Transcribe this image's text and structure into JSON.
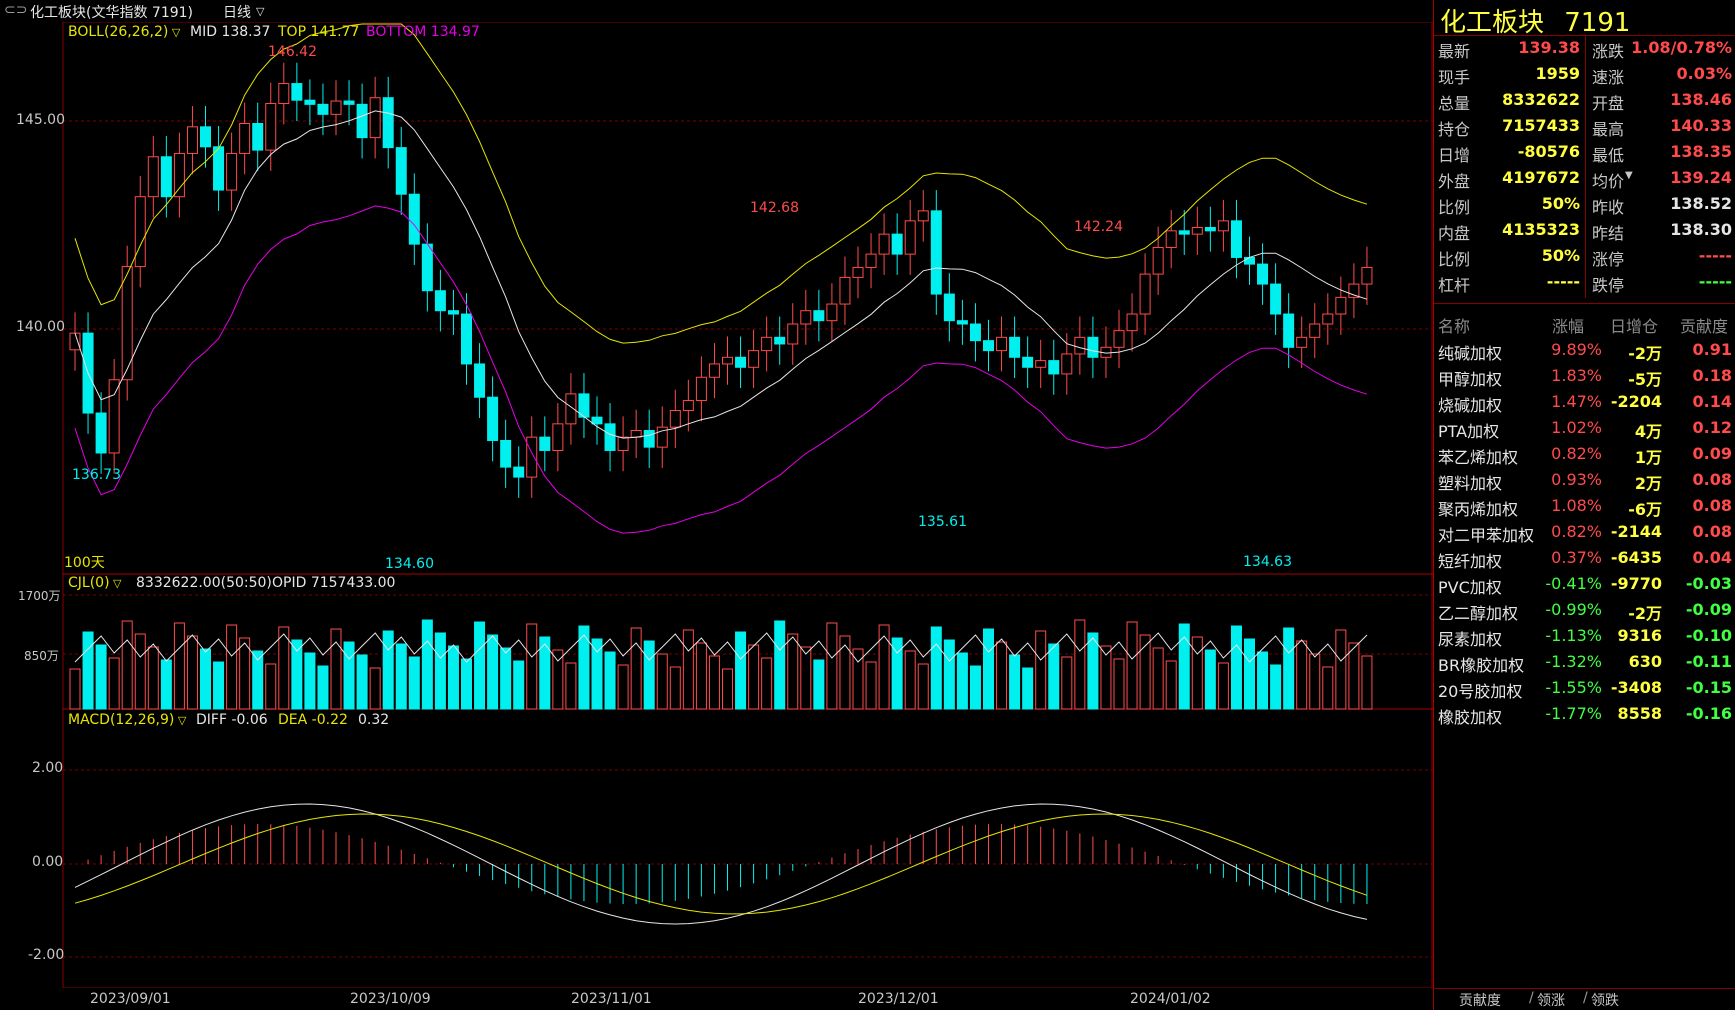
{
  "title_bar": {
    "window_icon": "link-icon",
    "title": "化工板块(文华指数 7191)",
    "period_label": "日线",
    "period_dropdown_icon": "chevron-down-icon"
  },
  "indicators": {
    "boll": {
      "label": "BOLL(26,26,2)",
      "mid": "MID 138.37",
      "top": "TOP 141.77",
      "bottom": "BOTTOM 134.97"
    },
    "cjl": {
      "label": "CJL(0)",
      "values": "8332622.00(50:50)",
      "opid": "OPID 7157433.00"
    },
    "macd": {
      "label": "MACD(12,26,9)",
      "diff": "DIFF -0.06",
      "dea": "DEA -0.22",
      "macd": "0.32"
    }
  },
  "price_axis": [
    "145.00",
    "140.00"
  ],
  "volume_axis": [
    "1700万",
    "850万"
  ],
  "macd_axis": [
    "2.00",
    "0.00",
    "-2.00"
  ],
  "date_axis": [
    "2023/09/01",
    "2023/10/09",
    "2023/11/01",
    "2023/12/01",
    "2024/01/02"
  ],
  "annotations": [
    "146.42",
    "136.73",
    "134.60",
    "142.68",
    "135.61",
    "142.24",
    "134.63"
  ],
  "days_label": "100天",
  "colors": {
    "up": "#ff4b4b",
    "down": "#00f0f0",
    "mid": "#e6e6e6",
    "upper": "#e6e600",
    "lower": "#e600e6"
  },
  "quote": {
    "name": "化工板块",
    "code": "7191",
    "left": [
      {
        "k": "最新",
        "v": "139.38",
        "c": "red"
      },
      {
        "k": "现手",
        "v": "1959",
        "c": "yellow"
      },
      {
        "k": "总量",
        "v": "8332622",
        "c": "yellow"
      },
      {
        "k": "持仓",
        "v": "7157433",
        "c": "yellow"
      },
      {
        "k": "日增",
        "v": "-80576",
        "c": "yellow"
      },
      {
        "k": "外盘",
        "v": "4197672",
        "c": "yellow"
      },
      {
        "k": "比例",
        "v": "50%",
        "c": "yellow"
      },
      {
        "k": "内盘",
        "v": "4135323",
        "c": "yellow"
      },
      {
        "k": "比例",
        "v": "50%",
        "c": "yellow"
      },
      {
        "k": "杠杆",
        "v": "-----",
        "c": "yellow"
      }
    ],
    "right": [
      {
        "k": "涨跌",
        "v": "1.08/0.78%",
        "c": "red"
      },
      {
        "k": "速涨",
        "v": "0.03%",
        "c": "red"
      },
      {
        "k": "开盘",
        "v": "138.46",
        "c": "red"
      },
      {
        "k": "最高",
        "v": "140.33",
        "c": "red"
      },
      {
        "k": "最低",
        "v": "138.35",
        "c": "red"
      },
      {
        "k": "均价",
        "v": "139.24",
        "c": "red"
      },
      {
        "k": "昨收",
        "v": "138.52",
        "c": "white"
      },
      {
        "k": "昨结",
        "v": "138.30",
        "c": "white"
      },
      {
        "k": "涨停",
        "v": "-----",
        "c": "red"
      },
      {
        "k": "跌停",
        "v": "-----",
        "c": "green"
      }
    ]
  },
  "list": {
    "headers": [
      "名称",
      "涨幅",
      "日增仓",
      "贡献度"
    ],
    "rows": [
      {
        "name": "纯碱加权",
        "chg": "9.89%",
        "oi": "-2万",
        "contrib": "0.91",
        "c": "red"
      },
      {
        "name": "甲醇加权",
        "chg": "1.83%",
        "oi": "-5万",
        "contrib": "0.18",
        "c": "red"
      },
      {
        "name": "烧碱加权",
        "chg": "1.47%",
        "oi": "-2204",
        "contrib": "0.14",
        "c": "red"
      },
      {
        "name": "PTA加权",
        "chg": "1.02%",
        "oi": "4万",
        "contrib": "0.12",
        "c": "red"
      },
      {
        "name": "苯乙烯加权",
        "chg": "0.82%",
        "oi": "1万",
        "contrib": "0.09",
        "c": "red"
      },
      {
        "name": "塑料加权",
        "chg": "0.93%",
        "oi": "2万",
        "contrib": "0.08",
        "c": "red"
      },
      {
        "name": "聚丙烯加权",
        "chg": "1.08%",
        "oi": "-6万",
        "contrib": "0.08",
        "c": "red"
      },
      {
        "name": "对二甲苯加权",
        "chg": "0.82%",
        "oi": "-2144",
        "contrib": "0.08",
        "c": "red"
      },
      {
        "name": "短纤加权",
        "chg": "0.37%",
        "oi": "-6435",
        "contrib": "0.04",
        "c": "red"
      },
      {
        "name": "PVC加权",
        "chg": "-0.41%",
        "oi": "-9770",
        "contrib": "-0.03",
        "c": "green"
      },
      {
        "name": "乙二醇加权",
        "chg": "-0.99%",
        "oi": "-2万",
        "contrib": "-0.09",
        "c": "green"
      },
      {
        "name": "尿素加权",
        "chg": "-1.13%",
        "oi": "9316",
        "contrib": "-0.10",
        "c": "green"
      },
      {
        "name": "BR橡胶加权",
        "chg": "-1.32%",
        "oi": "630",
        "contrib": "-0.11",
        "c": "green"
      },
      {
        "name": "20号胶加权",
        "chg": "-1.55%",
        "oi": "-3408",
        "contrib": "-0.15",
        "c": "green"
      },
      {
        "name": "橡胶加权",
        "chg": "-1.77%",
        "oi": "8558",
        "contrib": "-0.16",
        "c": "green"
      }
    ]
  },
  "tabs": [
    "贡献度",
    "领涨",
    "领跌"
  ]
}
